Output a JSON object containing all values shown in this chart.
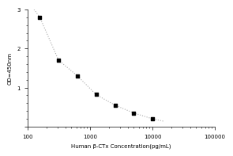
{
  "x_data": [
    156.25,
    312.5,
    625,
    1250,
    2500,
    5000,
    10000
  ],
  "y_data": [
    2.8,
    1.7,
    1.3,
    0.82,
    0.55,
    0.35,
    0.2
  ],
  "fit_x": [
    120,
    156.25,
    312.5,
    625,
    1250,
    2500,
    5000,
    10000,
    15000
  ],
  "fit_y": [
    3.05,
    2.8,
    1.7,
    1.3,
    0.82,
    0.55,
    0.35,
    0.2,
    0.14
  ],
  "xlim": [
    100,
    100000
  ],
  "ylim": [
    0,
    3
  ],
  "yticks": [
    0,
    1,
    2,
    3
  ],
  "ytick_labels": [
    "",
    "1",
    "2",
    "3"
  ],
  "xticks": [
    100,
    1000,
    10000,
    100000
  ],
  "xtick_labels": [
    "100",
    "1000",
    "10000",
    "100000"
  ],
  "xlabel": "Human β-CTx Concentration(pg/mL)",
  "ylabel": "OD=450nm",
  "marker_color": "black",
  "line_color": "#aaaaaa",
  "marker_style": "s",
  "marker_size": 3.5,
  "line_style": ":",
  "background_color": "#ffffff",
  "figsize": [
    3.0,
    2.0
  ],
  "dpi": 100
}
